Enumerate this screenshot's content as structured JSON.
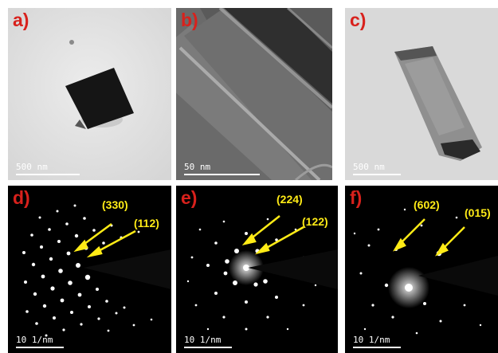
{
  "panels": {
    "a": {
      "label": "a)",
      "scale_text": "500  nm"
    },
    "b": {
      "label": "b)",
      "scale_text": "50  nm"
    },
    "c": {
      "label": "c)",
      "scale_text": "500  nm"
    },
    "d": {
      "label": "d)",
      "scale_text": "10  1/nm",
      "index_1": "(330)",
      "index_2": "(112)"
    },
    "e": {
      "label": "e)",
      "scale_text": "10  1/nm",
      "index_1": "(224)",
      "index_2": "(122)"
    },
    "f": {
      "label": "f)",
      "scale_text": "10  1/nm",
      "index_1": "(602)",
      "index_2": "(015)"
    }
  },
  "colors": {
    "panel_label": "#d8211c",
    "index_label": "#ffeb16",
    "arrow": "#ffeb16"
  }
}
